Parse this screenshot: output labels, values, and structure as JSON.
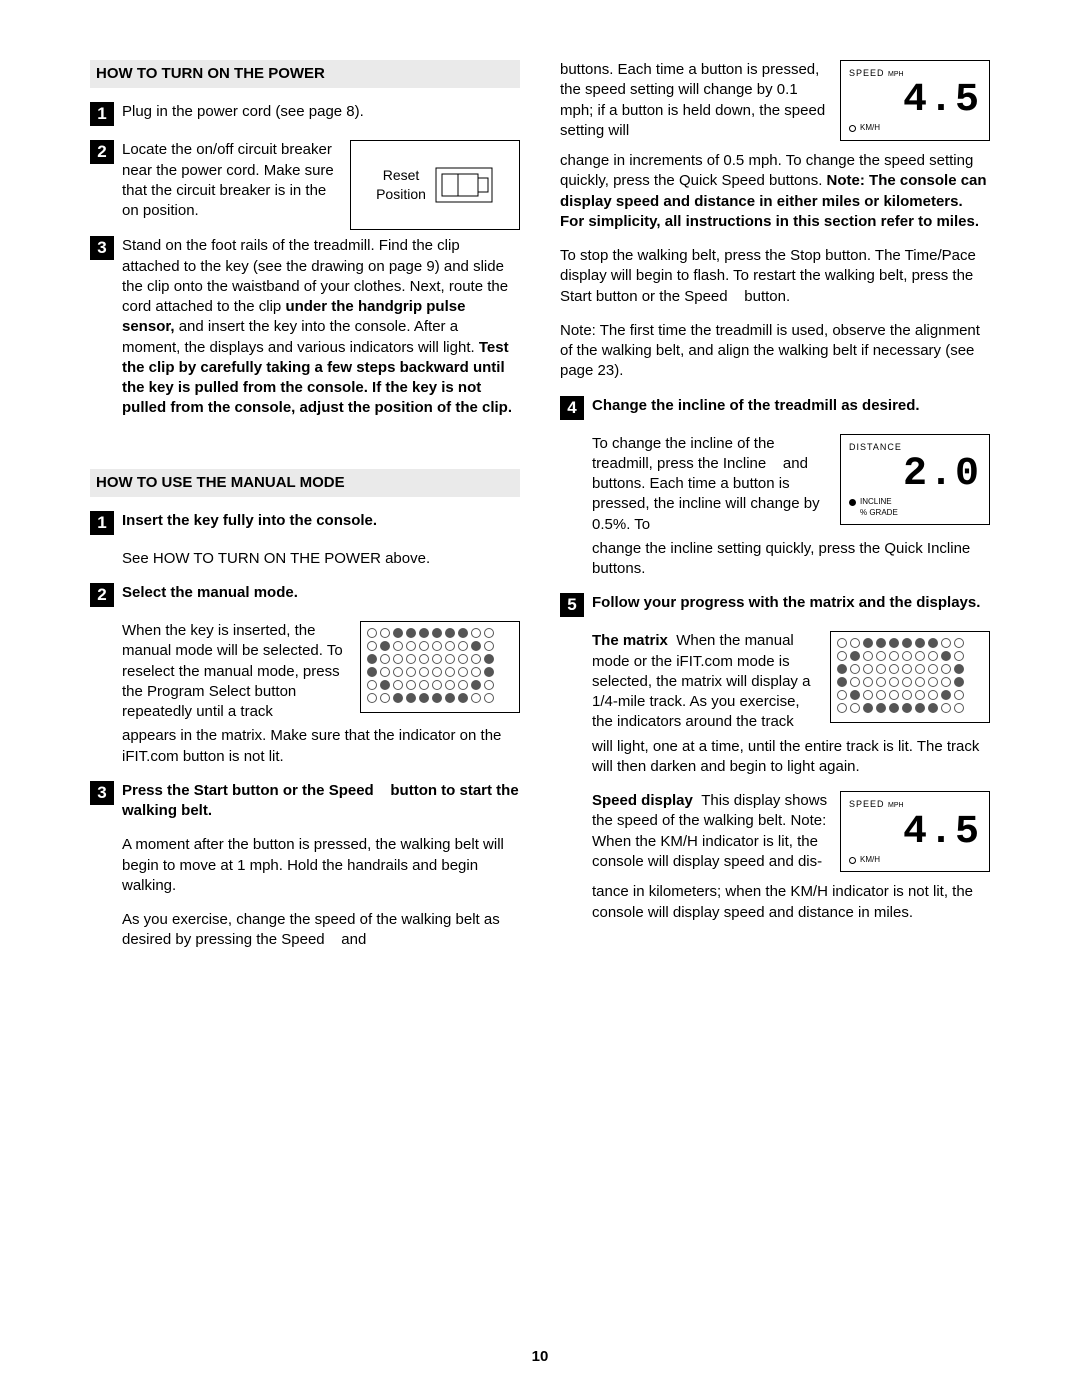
{
  "page_number": "10",
  "left": {
    "header1": "HOW TO TURN ON THE POWER",
    "step1": {
      "num": "1",
      "text": "Plug in the power cord (see page 8)."
    },
    "step2": {
      "num": "2",
      "text": "Locate the on/off circuit breaker near the power cord. Make sure that the circuit breaker is in the on position.",
      "fig_label": "Reset\nPosition"
    },
    "step3": {
      "num": "3",
      "pre": "Stand on the foot rails of the treadmill. Find the clip attached to the key (see the drawing on page 9) and slide the clip onto the waistband of your clothes. Next, route the cord attached to the clip ",
      "bold1": "under the handgrip pulse sensor,",
      "mid1": " and insert the key into the console. After a moment, the displays and various indicators will light. ",
      "bold2": "Test the clip by carefully taking a few steps backward until the key is pulled from the console. If the key is not pulled from the console, adjust the position of the clip."
    },
    "header2": "HOW TO USE THE MANUAL MODE",
    "m1": {
      "num": "1",
      "title": "Insert the key fully into the console.",
      "text": "See HOW TO TURN ON THE POWER above."
    },
    "m2": {
      "num": "2",
      "title": "Select the manual mode.",
      "text1": "When the key is inserted, the manual mode will be selected. To reselect the manual mode, press the Program Select button repeatedly until a track",
      "text2": "appears in the matrix. Make sure that the indicator on the iFIT.com button is not lit."
    },
    "m3": {
      "num": "3",
      "title": "Press the Start button or the Speed    button to start the walking belt.",
      "p1": "A moment after the button is pressed, the walking belt will begin to move at 1 mph. Hold the handrails and begin walking.",
      "p2": "As you exercise, change the speed of the walking belt as desired by pressing the Speed    and"
    }
  },
  "right": {
    "cont1": "buttons. Each time a button is pressed, the speed setting will change by 0.1 mph; if a button is held down, the speed setting will",
    "cont2_pre": "change in increments of 0.5 mph. To change the speed setting quickly, press the Quick Speed buttons. ",
    "cont2_bold": "Note: The console can display speed and distance in either miles or kilometers. For simplicity, all instructions in this section refer to miles.",
    "p3": "To stop the walking belt, press the Stop button. The Time/Pace display will begin to flash. To restart the walking belt, press the Start button or the Speed    button.",
    "p4": "Note: The first time the treadmill is used, observe the alignment of the walking belt, and align the walking belt if necessary (see page 23).",
    "r4": {
      "num": "4",
      "title": "Change the incline of the treadmill as desired.",
      "text1": "To change the incline of the treadmill, press the Incline    and    buttons. Each time a button is pressed, the incline will change by 0.5%. To",
      "text2": "change the incline setting quickly, press the Quick Incline buttons."
    },
    "r5": {
      "num": "5",
      "title": "Follow your progress with the matrix and the displays.",
      "mat_bold": "The matrix",
      "mat1": "  When the manual mode or the iFIT.com mode is selected, the matrix will display a 1/4-mile track. As you exercise, the indicators around the track",
      "mat2": "will light, one at a time, until the entire track is lit. The track will then darken and begin to light again.",
      "spd_bold": "Speed display",
      "spd1": "  This display shows the speed of the walking belt. Note: When the KM/H indicator is lit, the console will display speed and dis-",
      "spd2": "tance in kilometers; when the KM/H indicator is not lit, the console will display speed and distance in miles."
    },
    "lcd_speed": {
      "top": "SPEED",
      "top_sub": "MPH",
      "value": "4.5",
      "bottom": "KM/H"
    },
    "lcd_dist": {
      "top": "DISTANCE",
      "value": "2.0",
      "bot1": "INCLINE",
      "bot2": "% GRADE"
    }
  },
  "matrix_pattern": [
    [
      0,
      0,
      1,
      1,
      1,
      1,
      1,
      1,
      0,
      0
    ],
    [
      0,
      1,
      0,
      0,
      0,
      0,
      0,
      0,
      1,
      0
    ],
    [
      1,
      0,
      0,
      0,
      0,
      0,
      0,
      0,
      0,
      1
    ],
    [
      1,
      0,
      0,
      0,
      0,
      0,
      0,
      0,
      0,
      1
    ],
    [
      0,
      1,
      0,
      0,
      0,
      0,
      0,
      0,
      1,
      0
    ],
    [
      0,
      0,
      1,
      1,
      1,
      1,
      1,
      1,
      0,
      0
    ]
  ]
}
